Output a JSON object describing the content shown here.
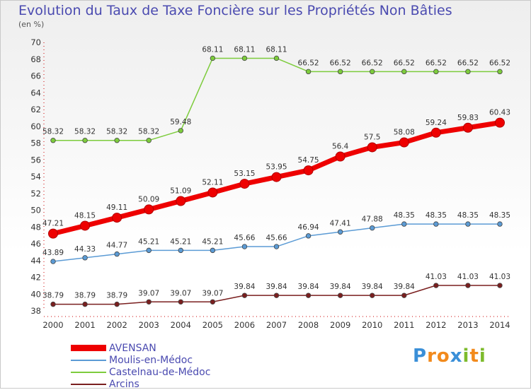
{
  "chart_data": {
    "type": "line",
    "title": "Evolution du Taux de Taxe Foncière sur les Propriétés Non Bâties",
    "ylabel": "(en %)",
    "xlabel": "",
    "categories": [
      "2000",
      "2001",
      "2002",
      "2003",
      "2004",
      "2005",
      "2006",
      "2007",
      "2008",
      "2009",
      "2010",
      "2011",
      "2012",
      "2013",
      "2014"
    ],
    "ylim": [
      38,
      70
    ],
    "yticks": [
      38,
      40,
      42,
      44,
      46,
      48,
      50,
      52,
      54,
      56,
      58,
      60,
      62,
      64,
      66,
      68,
      70
    ],
    "grid": false,
    "legend_position": "bottom-left",
    "series": [
      {
        "name": "AVENSAN",
        "color": "#ee0000",
        "values": [
          47.21,
          48.15,
          49.11,
          50.09,
          51.09,
          52.11,
          53.15,
          53.95,
          54.75,
          56.4,
          57.5,
          58.08,
          59.24,
          59.83,
          60.43
        ],
        "labels": [
          "47.21",
          "48.15",
          "49.11",
          "50.09",
          "51.09",
          "52.11",
          "53.15",
          "53.95",
          "54.75",
          "56.4",
          "57.5",
          "58.08",
          "59.24",
          "59.83",
          "60.43"
        ]
      },
      {
        "name": "Moulis-en-Médoc",
        "color": "#5b9bd5",
        "values": [
          43.89,
          44.33,
          44.77,
          45.21,
          45.21,
          45.21,
          45.66,
          45.66,
          46.94,
          47.41,
          47.88,
          48.35,
          48.35,
          48.35,
          48.35
        ],
        "labels": [
          "43.89",
          "44.33",
          "44.77",
          "45.21",
          "45.21",
          "45.21",
          "45.66",
          "45.66",
          "46.94",
          "47.41",
          "47.88",
          "48.35",
          "48.35",
          "48.35",
          "48.35"
        ]
      },
      {
        "name": "Castelnau-de-Médoc",
        "color": "#7dcc3c",
        "values": [
          58.32,
          58.32,
          58.32,
          58.32,
          59.48,
          68.11,
          68.11,
          68.11,
          66.52,
          66.52,
          66.52,
          66.52,
          66.52,
          66.52,
          66.52
        ],
        "labels": [
          "58.32",
          "58.32",
          "58.32",
          "58.32",
          "59.48",
          "68.11",
          "68.11",
          "68.11",
          "66.52",
          "66.52",
          "66.52",
          "66.52",
          "66.52",
          "66.52",
          "66.52"
        ]
      },
      {
        "name": "Arcins",
        "color": "#7a1f1f",
        "values": [
          38.79,
          38.79,
          38.79,
          39.07,
          39.07,
          39.07,
          39.84,
          39.84,
          39.84,
          39.84,
          39.84,
          39.84,
          41.03,
          41.03,
          41.03
        ],
        "labels": [
          "38.79",
          "38.79",
          "38.79",
          "39.07",
          "39.07",
          "39.07",
          "39.84",
          "39.84",
          "39.84",
          "39.84",
          "39.84",
          "39.84",
          "41.03",
          "41.03",
          "41.03"
        ]
      }
    ]
  },
  "legend": {
    "items": [
      {
        "label": "AVENSAN",
        "color": "#ee0000"
      },
      {
        "label": "Moulis-en-Médoc",
        "color": "#5b9bd5"
      },
      {
        "label": "Castelnau-de-Médoc",
        "color": "#7dcc3c"
      },
      {
        "label": "Arcins",
        "color": "#7a1f1f"
      }
    ]
  },
  "logo": {
    "letters": [
      "P",
      "r",
      "o",
      "x",
      "i",
      "t",
      "i"
    ],
    "colors": [
      "#3a8fd8",
      "#f28a1c",
      "#f28a1c",
      "#3a8fd8",
      "#7dbb2c",
      "#f28a1c",
      "#7dbb2c"
    ]
  }
}
